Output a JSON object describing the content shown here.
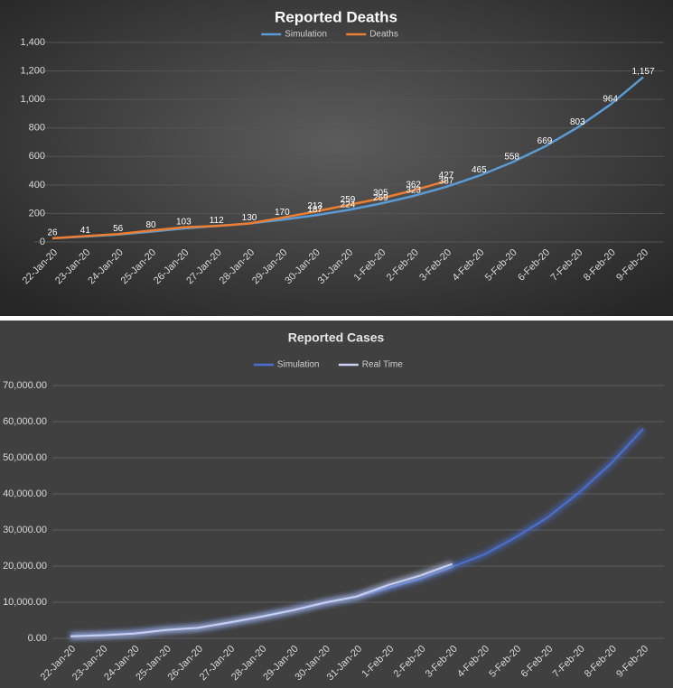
{
  "chart_data": [
    {
      "type": "line",
      "title": "Reported Deaths",
      "categories": [
        "22-Jan-20",
        "23-Jan-20",
        "24-Jan-20",
        "25-Jan-20",
        "26-Jan-20",
        "27-Jan-20",
        "28-Jan-20",
        "29-Jan-20",
        "30-Jan-20",
        "31-Jan-20",
        "1-Feb-20",
        "2-Feb-20",
        "3-Feb-20",
        "4-Feb-20",
        "5-Feb-20",
        "6-Feb-20",
        "7-Feb-20",
        "8-Feb-20",
        "9-Feb-20"
      ],
      "series": [
        {
          "name": "Simulation",
          "color": "#5b9bd5",
          "values": [
            26,
            38,
            52,
            72,
            95,
            112,
            130,
            156,
            187,
            224,
            269,
            323,
            387,
            465,
            558,
            669,
            803,
            964,
            1157
          ],
          "value_labels": [
            null,
            null,
            null,
            null,
            null,
            null,
            null,
            null,
            "187",
            "224",
            "269",
            "323",
            "387",
            "465",
            "558",
            "669",
            "803",
            "964",
            "1,157"
          ]
        },
        {
          "name": "Deaths",
          "color": "#ed7d31",
          "values": [
            26,
            41,
            56,
            80,
            103,
            112,
            130,
            170,
            213,
            259,
            305,
            362,
            427,
            null,
            null,
            null,
            null,
            null,
            null
          ],
          "value_labels": [
            "26",
            "41",
            "56",
            "80",
            "103",
            "112",
            "130",
            "170",
            "213",
            "259",
            "305",
            "362",
            "427",
            null,
            null,
            null,
            null,
            null,
            null
          ]
        }
      ],
      "ylim": [
        0,
        1400
      ],
      "yticks": [
        0,
        200,
        400,
        600,
        800,
        {
          "value": 1000,
          "label": "1,000"
        },
        {
          "value": 1200,
          "label": "1,200"
        },
        {
          "value": 1400,
          "label": "1,400"
        }
      ],
      "grid": true,
      "legend": "top"
    },
    {
      "type": "line",
      "title": "Reported Cases",
      "categories": [
        "22-Jan-20",
        "23-Jan-20",
        "24-Jan-20",
        "25-Jan-20",
        "26-Jan-20",
        "27-Jan-20",
        "28-Jan-20",
        "29-Jan-20",
        "30-Jan-20",
        "31-Jan-20",
        "1-Feb-20",
        "2-Feb-20",
        "3-Feb-20",
        "4-Feb-20",
        "5-Feb-20",
        "6-Feb-20",
        "7-Feb-20",
        "8-Feb-20",
        "9-Feb-20"
      ],
      "series": [
        {
          "name": "Simulation",
          "color": "#4a6fd0",
          "values": [
            580,
            1000,
            1400,
            2300,
            2900,
            4300,
            6000,
            7800,
            9800,
            11500,
            14000,
            16500,
            19800,
            23200,
            28000,
            33500,
            40500,
            48500,
            58000
          ]
        },
        {
          "name": "Real Time",
          "color": "#c9d0f0",
          "values": [
            555,
            850,
            1300,
            2300,
            2900,
            4400,
            6000,
            7800,
            9900,
            11600,
            14800,
            17400,
            20600,
            null,
            null,
            null,
            null,
            null,
            null
          ]
        }
      ],
      "ylim": [
        0,
        70000
      ],
      "yticks": [
        {
          "value": 0,
          "label": "0.00"
        },
        {
          "value": 10000,
          "label": "10,000.00"
        },
        {
          "value": 20000,
          "label": "20,000.00"
        },
        {
          "value": 30000,
          "label": "30,000.00"
        },
        {
          "value": 40000,
          "label": "40,000.00"
        },
        {
          "value": 50000,
          "label": "50,000.00"
        },
        {
          "value": 60000,
          "label": "60,000.00"
        },
        {
          "value": 70000,
          "label": "70,000.00"
        }
      ],
      "grid": true,
      "legend": "top"
    }
  ]
}
